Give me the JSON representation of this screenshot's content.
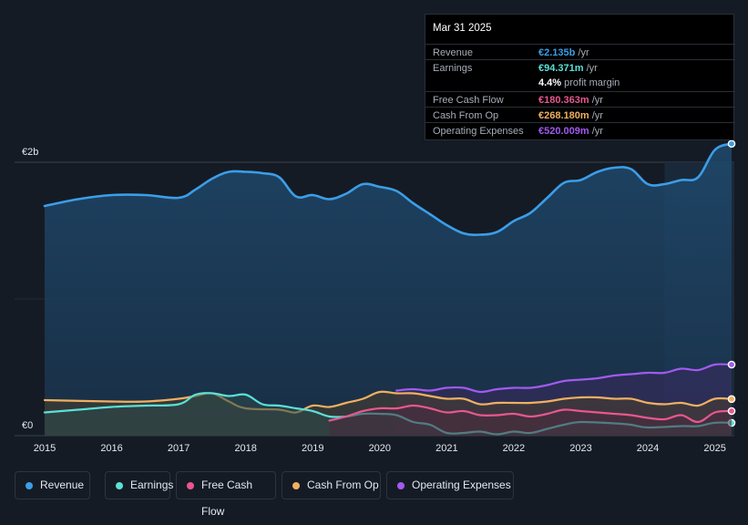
{
  "tooltip": {
    "date": "Mar 31 2025",
    "rows": [
      {
        "label": "Revenue",
        "value": "€2.135b",
        "unit": " /yr",
        "color": "#3b9ee8"
      },
      {
        "label": "Earnings",
        "value": "€94.371m",
        "unit": " /yr",
        "color": "#5ae0d6"
      },
      {
        "label": "",
        "value": "4.4%",
        "unit": " profit margin",
        "color": "#ffffff"
      },
      {
        "label": "Free Cash Flow",
        "value": "€180.363m",
        "unit": " /yr",
        "color": "#e8578f"
      },
      {
        "label": "Cash From Op",
        "value": "€268.180m",
        "unit": " /yr",
        "color": "#f0b060"
      },
      {
        "label": "Operating Expenses",
        "value": "€520.009m",
        "unit": " /yr",
        "color": "#a25af0"
      }
    ]
  },
  "legend": [
    {
      "label": "Revenue",
      "color": "#3b9ee8"
    },
    {
      "label": "Earnings",
      "color": "#5ae0d6"
    },
    {
      "label": "Free Cash Flow",
      "color": "#e8578f"
    },
    {
      "label": "Cash From Op",
      "color": "#f0b060"
    },
    {
      "label": "Operating Expenses",
      "color": "#a25af0"
    }
  ],
  "chart_data": {
    "type": "area",
    "y_axis_labels": [
      "€2b",
      "€0"
    ],
    "ylim": [
      0,
      2.2
    ],
    "xlim": [
      2015.0,
      2025.25
    ],
    "x_ticks": [
      "2015",
      "2016",
      "2017",
      "2018",
      "2019",
      "2020",
      "2021",
      "2022",
      "2023",
      "2024",
      "2025"
    ],
    "highlight_start": 2024.25,
    "series": [
      {
        "name": "Revenue",
        "color": "#3b9ee8",
        "fill": true,
        "points": [
          [
            2015.0,
            1.68
          ],
          [
            2015.5,
            1.73
          ],
          [
            2016.0,
            1.76
          ],
          [
            2016.5,
            1.76
          ],
          [
            2017.0,
            1.74
          ],
          [
            2017.25,
            1.8
          ],
          [
            2017.5,
            1.88
          ],
          [
            2017.75,
            1.93
          ],
          [
            2018.0,
            1.93
          ],
          [
            2018.25,
            1.92
          ],
          [
            2018.5,
            1.89
          ],
          [
            2018.75,
            1.75
          ],
          [
            2019.0,
            1.76
          ],
          [
            2019.25,
            1.73
          ],
          [
            2019.5,
            1.77
          ],
          [
            2019.75,
            1.84
          ],
          [
            2020.0,
            1.82
          ],
          [
            2020.25,
            1.79
          ],
          [
            2020.5,
            1.7
          ],
          [
            2020.75,
            1.62
          ],
          [
            2021.0,
            1.54
          ],
          [
            2021.25,
            1.48
          ],
          [
            2021.5,
            1.47
          ],
          [
            2021.75,
            1.49
          ],
          [
            2022.0,
            1.57
          ],
          [
            2022.25,
            1.63
          ],
          [
            2022.5,
            1.74
          ],
          [
            2022.75,
            1.85
          ],
          [
            2023.0,
            1.87
          ],
          [
            2023.25,
            1.93
          ],
          [
            2023.5,
            1.96
          ],
          [
            2023.75,
            1.95
          ],
          [
            2024.0,
            1.84
          ],
          [
            2024.25,
            1.84
          ],
          [
            2024.5,
            1.87
          ],
          [
            2024.75,
            1.89
          ],
          [
            2025.0,
            2.09
          ],
          [
            2025.25,
            2.135
          ]
        ]
      },
      {
        "name": "Operating Expenses",
        "color": "#a25af0",
        "fill": true,
        "points": [
          [
            2020.25,
            0.33
          ],
          [
            2020.5,
            0.34
          ],
          [
            2020.75,
            0.33
          ],
          [
            2021.0,
            0.35
          ],
          [
            2021.25,
            0.35
          ],
          [
            2021.5,
            0.32
          ],
          [
            2021.75,
            0.34
          ],
          [
            2022.0,
            0.35
          ],
          [
            2022.25,
            0.35
          ],
          [
            2022.5,
            0.37
          ],
          [
            2022.75,
            0.4
          ],
          [
            2023.0,
            0.41
          ],
          [
            2023.25,
            0.42
          ],
          [
            2023.5,
            0.44
          ],
          [
            2023.75,
            0.45
          ],
          [
            2024.0,
            0.46
          ],
          [
            2024.25,
            0.46
          ],
          [
            2024.5,
            0.49
          ],
          [
            2024.75,
            0.48
          ],
          [
            2025.0,
            0.52
          ],
          [
            2025.25,
            0.52
          ]
        ]
      },
      {
        "name": "Cash From Op",
        "color": "#f0b060",
        "fill": true,
        "points": [
          [
            2015.0,
            0.26
          ],
          [
            2016.0,
            0.25
          ],
          [
            2016.5,
            0.25
          ],
          [
            2017.0,
            0.27
          ],
          [
            2017.25,
            0.29
          ],
          [
            2017.5,
            0.31
          ],
          [
            2017.75,
            0.25
          ],
          [
            2018.0,
            0.2
          ],
          [
            2018.5,
            0.19
          ],
          [
            2018.75,
            0.17
          ],
          [
            2019.0,
            0.22
          ],
          [
            2019.25,
            0.21
          ],
          [
            2019.5,
            0.24
          ],
          [
            2019.75,
            0.27
          ],
          [
            2020.0,
            0.32
          ],
          [
            2020.25,
            0.31
          ],
          [
            2020.5,
            0.31
          ],
          [
            2020.75,
            0.29
          ],
          [
            2021.0,
            0.27
          ],
          [
            2021.25,
            0.27
          ],
          [
            2021.5,
            0.23
          ],
          [
            2021.75,
            0.24
          ],
          [
            2022.0,
            0.24
          ],
          [
            2022.25,
            0.24
          ],
          [
            2022.5,
            0.25
          ],
          [
            2022.75,
            0.27
          ],
          [
            2023.0,
            0.28
          ],
          [
            2023.25,
            0.28
          ],
          [
            2023.5,
            0.27
          ],
          [
            2023.75,
            0.27
          ],
          [
            2024.0,
            0.24
          ],
          [
            2024.25,
            0.23
          ],
          [
            2024.5,
            0.24
          ],
          [
            2024.75,
            0.22
          ],
          [
            2025.0,
            0.27
          ],
          [
            2025.25,
            0.268
          ]
        ]
      },
      {
        "name": "Earnings",
        "color": "#5ae0d6",
        "fill": true,
        "points": [
          [
            2015.0,
            0.17
          ],
          [
            2015.5,
            0.19
          ],
          [
            2016.0,
            0.21
          ],
          [
            2016.5,
            0.22
          ],
          [
            2017.0,
            0.23
          ],
          [
            2017.25,
            0.3
          ],
          [
            2017.5,
            0.31
          ],
          [
            2017.75,
            0.29
          ],
          [
            2018.0,
            0.3
          ],
          [
            2018.25,
            0.23
          ],
          [
            2018.5,
            0.22
          ],
          [
            2018.75,
            0.2
          ],
          [
            2019.0,
            0.18
          ],
          [
            2019.25,
            0.14
          ],
          [
            2019.5,
            0.14
          ],
          [
            2019.75,
            0.16
          ],
          [
            2020.0,
            0.16
          ],
          [
            2020.25,
            0.15
          ],
          [
            2020.5,
            0.1
          ],
          [
            2020.75,
            0.08
          ],
          [
            2021.0,
            0.02
          ],
          [
            2021.25,
            0.02
          ],
          [
            2021.5,
            0.03
          ],
          [
            2021.75,
            0.01
          ],
          [
            2022.0,
            0.03
          ],
          [
            2022.25,
            0.02
          ],
          [
            2022.5,
            0.05
          ],
          [
            2022.75,
            0.08
          ],
          [
            2023.0,
            0.1
          ],
          [
            2023.5,
            0.09
          ],
          [
            2023.75,
            0.08
          ],
          [
            2024.0,
            0.06
          ],
          [
            2024.5,
            0.07
          ],
          [
            2024.75,
            0.07
          ],
          [
            2025.0,
            0.095
          ],
          [
            2025.25,
            0.094
          ]
        ]
      },
      {
        "name": "Free Cash Flow",
        "color": "#e8578f",
        "fill": true,
        "points": [
          [
            2019.25,
            0.11
          ],
          [
            2019.5,
            0.14
          ],
          [
            2019.75,
            0.18
          ],
          [
            2020.0,
            0.2
          ],
          [
            2020.25,
            0.2
          ],
          [
            2020.5,
            0.22
          ],
          [
            2020.75,
            0.2
          ],
          [
            2021.0,
            0.17
          ],
          [
            2021.25,
            0.18
          ],
          [
            2021.5,
            0.15
          ],
          [
            2021.75,
            0.15
          ],
          [
            2022.0,
            0.16
          ],
          [
            2022.25,
            0.14
          ],
          [
            2022.5,
            0.16
          ],
          [
            2022.75,
            0.19
          ],
          [
            2023.0,
            0.18
          ],
          [
            2023.25,
            0.17
          ],
          [
            2023.5,
            0.16
          ],
          [
            2023.75,
            0.15
          ],
          [
            2024.0,
            0.13
          ],
          [
            2024.25,
            0.12
          ],
          [
            2024.5,
            0.15
          ],
          [
            2024.75,
            0.1
          ],
          [
            2025.0,
            0.17
          ],
          [
            2025.25,
            0.18
          ]
        ]
      }
    ]
  }
}
